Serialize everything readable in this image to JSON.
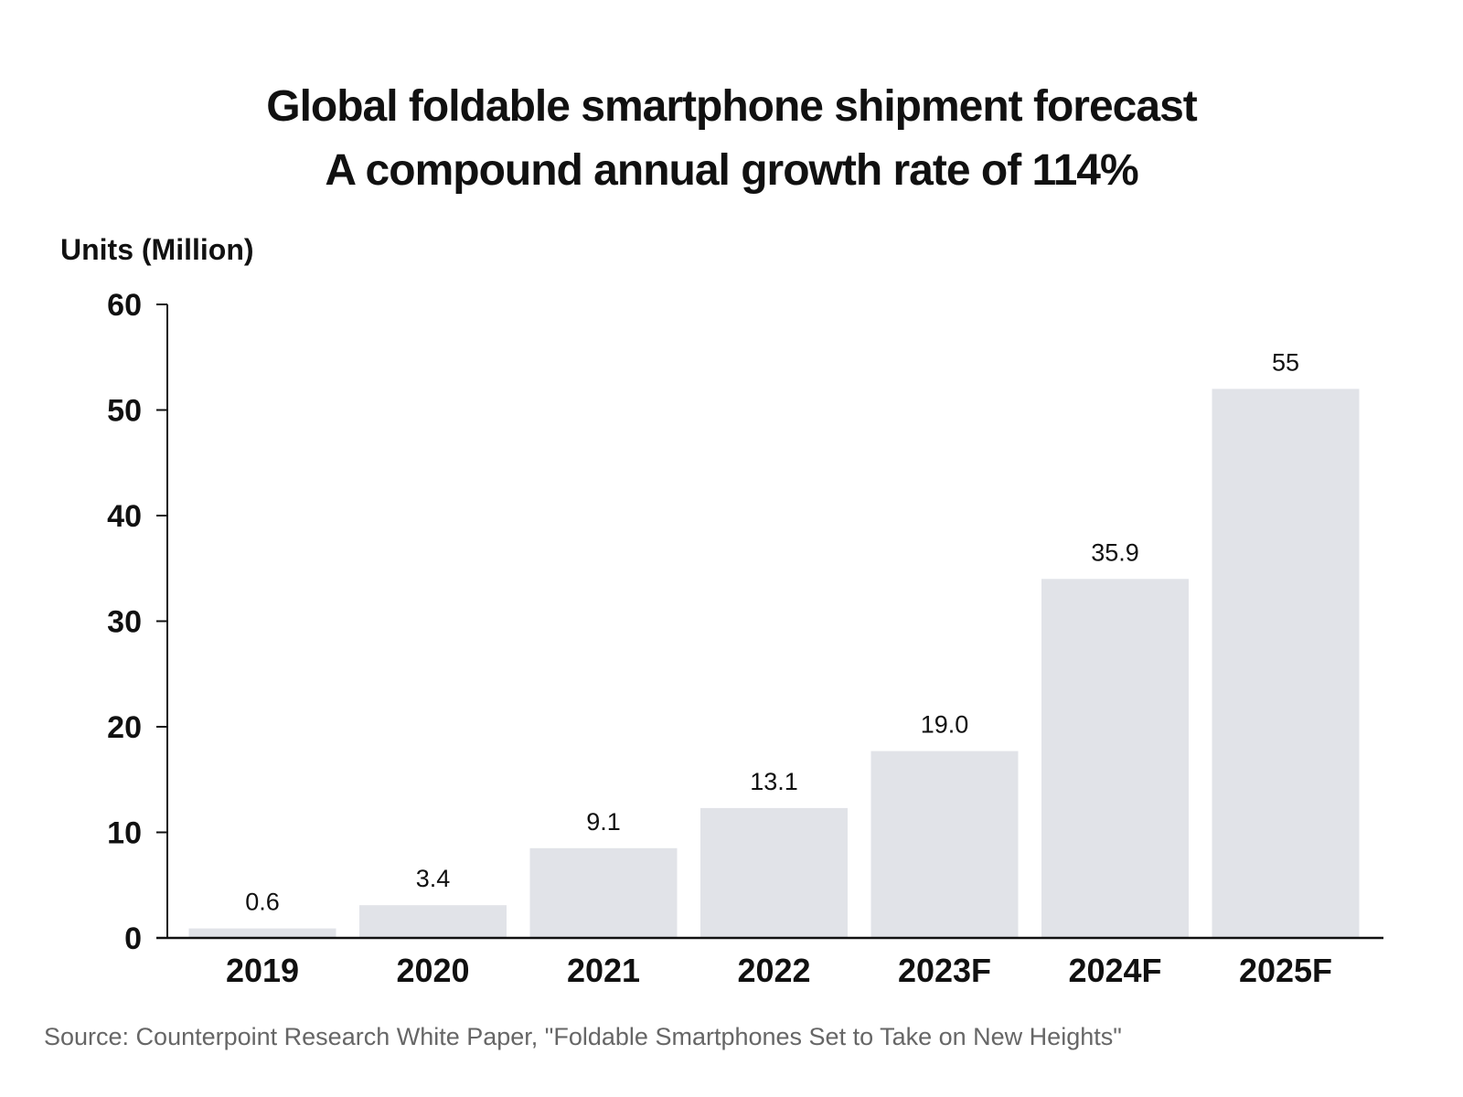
{
  "chart_data": {
    "type": "bar",
    "title": "Global foldable smartphone shipment forecast",
    "subtitle": "A compound annual growth rate of 114%",
    "ylabel": "Units (Million)",
    "xlabel": "",
    "categories": [
      "2019",
      "2020",
      "2021",
      "2022",
      "2023F",
      "2024F",
      "2025F"
    ],
    "values": [
      0.6,
      3.4,
      9.1,
      13.1,
      19.0,
      35.9,
      55
    ],
    "value_labels": [
      "0.6",
      "3.4",
      "9.1",
      "13.1",
      "19.0",
      "35.9",
      "55"
    ],
    "bar_heights_estimated": [
      0.9,
      3.1,
      8.5,
      12.3,
      17.7,
      34.0,
      52.0
    ],
    "ylim": [
      0,
      60
    ],
    "yticks": [
      0,
      10,
      20,
      30,
      40,
      50,
      60
    ],
    "grid": false,
    "legend": "none",
    "bar_color": "#e1e3e8",
    "source": "Source: Counterpoint Research White Paper, \"Foldable Smartphones Set to Take on New Heights\""
  }
}
